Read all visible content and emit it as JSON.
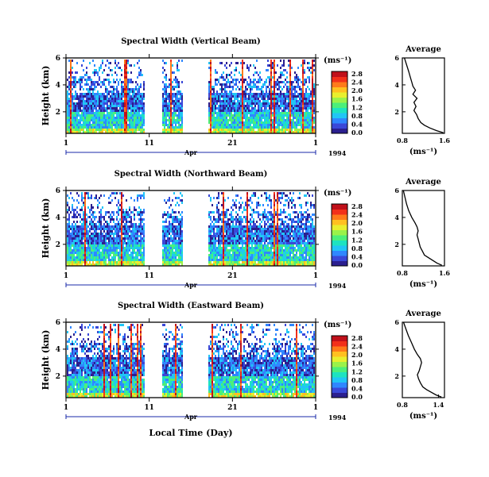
{
  "figure": {
    "xlabel": "Local Time (Day)",
    "month": "Apr",
    "year": "1994",
    "unit": "(ms⁻¹)",
    "avg_title": "Average",
    "ylabel": "Height (km)"
  },
  "colorbar": {
    "ticks": [
      "2.8",
      "2.4",
      "2.0",
      "1.6",
      "1.2",
      "0.8",
      "0.4",
      "0.0"
    ],
    "colors": [
      "#2b1f8f",
      "#3a48d8",
      "#2f87ff",
      "#21c6f5",
      "#1ee3c0",
      "#4cef7a",
      "#9af24a",
      "#e8ef2e",
      "#ffc020",
      "#ff7a1a",
      "#f2301a",
      "#c0101a"
    ]
  },
  "chart_data": [
    {
      "type": "heatmap",
      "title": "Spectral Width (Vertical Beam)",
      "ylabel": "Height (km)",
      "xlabel": "",
      "x_ticks": [
        "1",
        "11",
        "21",
        "1"
      ],
      "y_ticks": [
        "6",
        "4",
        "2"
      ],
      "x_range_days": [
        1,
        31
      ],
      "ylim_km": [
        0.4,
        6
      ],
      "colorbar_range": [
        0.0,
        2.8
      ],
      "data_gaps_days": [
        [
          10.3,
          12.5
        ],
        [
          15.0,
          18.0
        ]
      ],
      "average_profile": {
        "xlabel": "(ms⁻¹)",
        "x_ticks": [
          "0.8",
          "1.6"
        ],
        "xlim": [
          0.8,
          1.6
        ],
        "y_ticks": [
          "6",
          "4",
          "2"
        ],
        "x": [
          0.84,
          0.88,
          0.92,
          0.95,
          0.98,
          1.0,
          1.05,
          1.0,
          1.08,
          1.02,
          1.06,
          1.02,
          1.07,
          1.1,
          1.15,
          1.22,
          1.32,
          1.45,
          1.58
        ],
        "y": [
          6.0,
          5.5,
          5.0,
          4.6,
          4.2,
          3.9,
          3.6,
          3.3,
          3.0,
          2.7,
          2.4,
          2.1,
          1.8,
          1.5,
          1.2,
          1.0,
          0.8,
          0.6,
          0.45
        ]
      }
    },
    {
      "type": "heatmap",
      "title": "Spectral Width (Northward Beam)",
      "ylabel": "Height (km)",
      "xlabel": "",
      "x_ticks": [
        "1",
        "11",
        "21",
        "1"
      ],
      "y_ticks": [
        "6",
        "4",
        "2"
      ],
      "x_range_days": [
        1,
        31
      ],
      "ylim_km": [
        0.4,
        6
      ],
      "colorbar_range": [
        0.0,
        2.8
      ],
      "data_gaps_days": [
        [
          10.3,
          12.5
        ],
        [
          15.0,
          18.0
        ]
      ],
      "average_profile": {
        "xlabel": "(ms⁻¹)",
        "x_ticks": [
          "0.8",
          "1.6"
        ],
        "xlim": [
          0.8,
          1.6
        ],
        "y_ticks": [
          "6",
          "4",
          "2"
        ],
        "x": [
          0.82,
          0.85,
          0.88,
          0.92,
          0.98,
          1.04,
          1.08,
          1.1,
          1.08,
          1.1,
          1.12,
          1.14,
          1.18,
          1.22,
          1.3,
          1.38,
          1.46,
          1.55
        ],
        "y": [
          6.0,
          5.5,
          5.0,
          4.5,
          4.0,
          3.6,
          3.3,
          3.0,
          2.7,
          2.4,
          2.1,
          1.8,
          1.5,
          1.2,
          1.0,
          0.8,
          0.6,
          0.45
        ]
      }
    },
    {
      "type": "heatmap",
      "title": "Spectral Width (Eastward Beam)",
      "ylabel": "Height (km)",
      "xlabel": "Local Time (Day)",
      "x_ticks": [
        "1",
        "11",
        "21",
        "1"
      ],
      "y_ticks": [
        "6",
        "4",
        "2"
      ],
      "x_range_days": [
        1,
        31
      ],
      "ylim_km": [
        0.4,
        6
      ],
      "colorbar_range": [
        0.0,
        2.8
      ],
      "data_gaps_days": [
        [
          10.3,
          12.5
        ],
        [
          15.0,
          18.0
        ]
      ],
      "average_profile": {
        "xlabel": "(ms⁻¹)",
        "x_ticks": [
          "0.8",
          "1.4"
        ],
        "xlim": [
          0.8,
          1.5
        ],
        "y_ticks": [
          "6",
          "4",
          "2"
        ],
        "x": [
          0.82,
          0.86,
          0.9,
          0.95,
          1.0,
          1.05,
          1.1,
          1.12,
          1.1,
          1.08,
          1.05,
          1.07,
          1.1,
          1.14,
          1.2,
          1.28,
          1.36,
          1.45
        ],
        "y": [
          6.0,
          5.5,
          5.0,
          4.5,
          4.0,
          3.6,
          3.3,
          3.0,
          2.7,
          2.4,
          2.1,
          1.8,
          1.5,
          1.2,
          1.0,
          0.8,
          0.6,
          0.45
        ]
      }
    }
  ]
}
